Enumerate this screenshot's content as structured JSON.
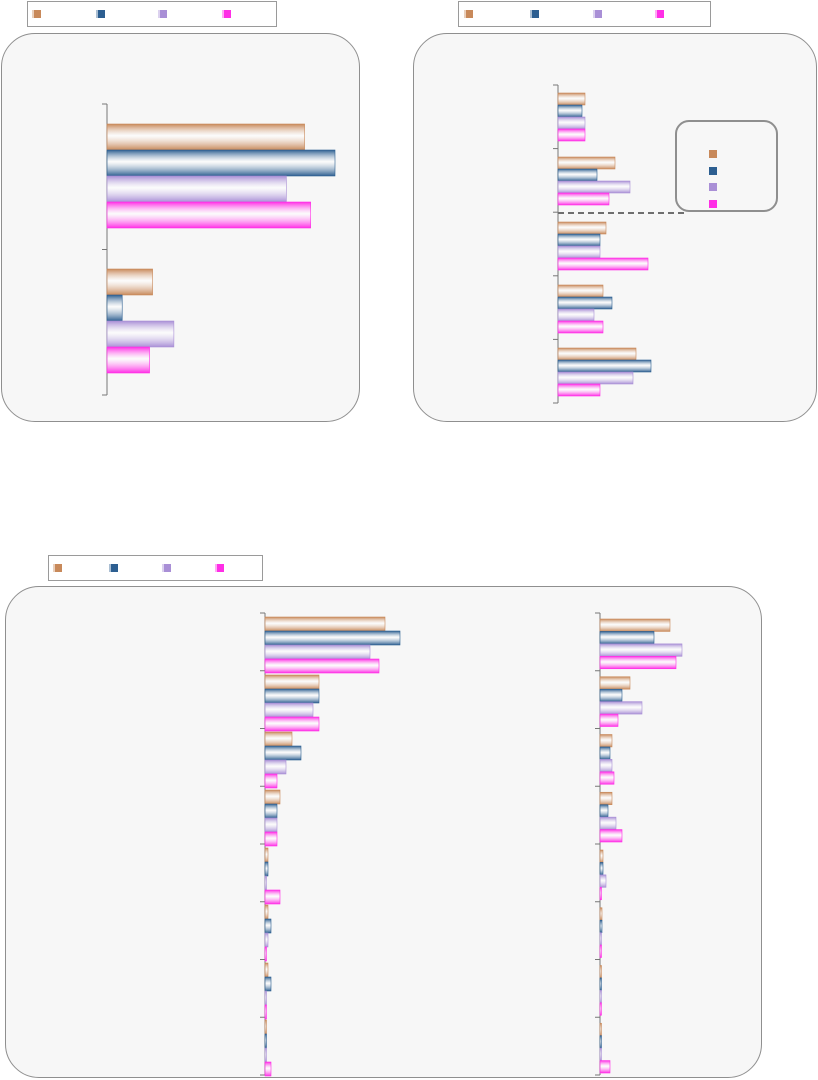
{
  "colors": {
    "series1": "#c8895a",
    "series2": "#2d5f91",
    "series3": "#a98fd6",
    "series4": "#ff2ee6",
    "axis": "#777777",
    "callout_line": "#6f6f6f"
  },
  "chart_data": [
    {
      "type": "bar",
      "orientation": "horizontal",
      "title": "",
      "categories": [
        "",
        ""
      ],
      "series": [
        {
          "values": [
            65,
            15
          ]
        },
        {
          "values": [
            75,
            5
          ]
        },
        {
          "values": [
            59,
            22
          ]
        },
        {
          "values": [
            67,
            14
          ]
        }
      ],
      "xlim": [
        0,
        100
      ],
      "grid": false,
      "legend": "top"
    },
    {
      "type": "bar",
      "orientation": "horizontal",
      "title": "",
      "categories": [
        "",
        "",
        "",
        "",
        ""
      ],
      "series": [
        {
          "values": [
            9,
            19,
            16,
            15,
            26
          ]
        },
        {
          "values": [
            8,
            13,
            14,
            18,
            31
          ]
        },
        {
          "values": [
            9,
            24,
            14,
            12,
            25
          ]
        },
        {
          "values": [
            9,
            17,
            30,
            15,
            14
          ]
        }
      ],
      "xlim": [
        0,
        100
      ],
      "grid": false,
      "legend": "top"
    },
    {
      "type": "bar",
      "orientation": "horizontal",
      "title": "",
      "categories": [
        "",
        "",
        "",
        "",
        "",
        "",
        "",
        ""
      ],
      "series": [
        {
          "values": [
            40,
            18,
            9,
            5,
            1,
            1,
            1,
            0.5
          ]
        },
        {
          "values": [
            45,
            18,
            12,
            4,
            1,
            2,
            2,
            0.5
          ]
        },
        {
          "values": [
            35,
            16,
            7,
            4,
            0.5,
            1,
            0.5,
            0.3
          ]
        },
        {
          "values": [
            38,
            18,
            4,
            4,
            5,
            0.3,
            0.3,
            2
          ]
        }
      ],
      "xlim": [
        0,
        100
      ],
      "grid": false,
      "legend": "top"
    },
    {
      "type": "bar",
      "orientation": "horizontal",
      "title": "",
      "categories": [
        "",
        "",
        "",
        "",
        "",
        "",
        "",
        ""
      ],
      "series": [
        {
          "values": [
            35,
            15,
            6,
            6,
            1.5,
            1,
            0.5,
            0.5
          ]
        },
        {
          "values": [
            27,
            11,
            5,
            4,
            1.5,
            1,
            0.5,
            0.5
          ]
        },
        {
          "values": [
            41,
            21,
            6,
            8,
            3,
            0.5,
            0.5,
            0.3
          ]
        },
        {
          "values": [
            38,
            9,
            7,
            11,
            0.5,
            0.5,
            0.5,
            5
          ]
        }
      ],
      "xlim": [
        0,
        100
      ],
      "grid": false,
      "legend": "top"
    }
  ]
}
